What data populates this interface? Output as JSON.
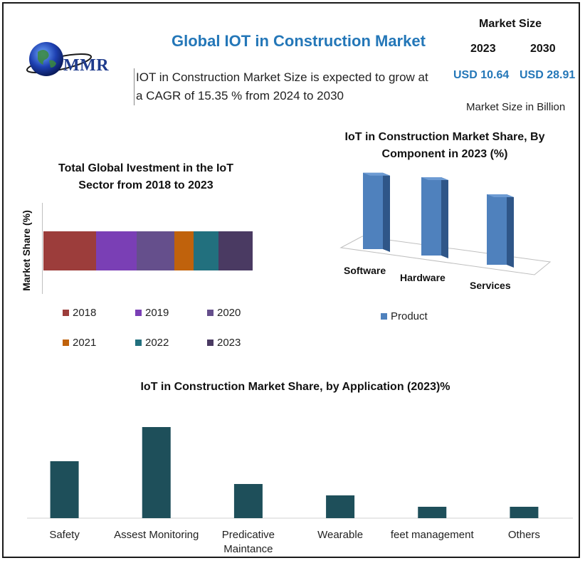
{
  "logo": {
    "text": "MMR"
  },
  "header": {
    "title": "Global IOT in Construction Market",
    "intro": "IOT in Construction Market Size is expected to grow at a CAGR of 15.35 % from 2024 to 2030"
  },
  "market_size": {
    "label": "Market Size",
    "year_1": "2023",
    "year_2": "2030",
    "value_1": "USD 10.64",
    "value_2": "USD 28.91",
    "unit_note": "Market Size in Billion"
  },
  "colors": {
    "title_blue": "#2477b8",
    "bar3d_blue": "#4f81bd",
    "bar_teal": "#1e4f5a"
  },
  "chart_data": [
    {
      "type": "bar",
      "stacked": true,
      "orientation": "horizontal",
      "title": "Total Global Ivestment in the IoT Sector from 2018 to 2023",
      "ylabel": "Market Share (%)",
      "series": [
        {
          "name": "2018",
          "value": 25,
          "color": "#9c3d3b"
        },
        {
          "name": "2019",
          "value": 19,
          "color": "#7a3fb5"
        },
        {
          "name": "2020",
          "value": 18,
          "color": "#654f8c"
        },
        {
          "name": "2021",
          "value": 9,
          "color": "#c0620c"
        },
        {
          "name": "2022",
          "value": 12,
          "color": "#22707e"
        },
        {
          "name": "2023",
          "value": 16,
          "color": "#4a3a62"
        }
      ],
      "legend_position": "bottom"
    },
    {
      "type": "bar",
      "style": "3d",
      "title": "IoT in Construction Market Share, By Component in 2023 (%)",
      "categories": [
        "Software",
        "Hardware",
        "Services"
      ],
      "series": [
        {
          "name": "Product",
          "values": [
            39,
            40,
            36
          ]
        }
      ],
      "ylim": [
        0,
        45
      ],
      "legend_position": "bottom"
    },
    {
      "type": "bar",
      "title": "IoT in Construction Market Share, by Application (2023)%",
      "categories": [
        "Safety",
        "Assest Monitoring",
        "Predicative Maintance",
        "Wearable",
        "feet management",
        "Others"
      ],
      "values": [
        25,
        40,
        15,
        10,
        5,
        5
      ],
      "ylim": [
        0,
        40
      ]
    }
  ]
}
